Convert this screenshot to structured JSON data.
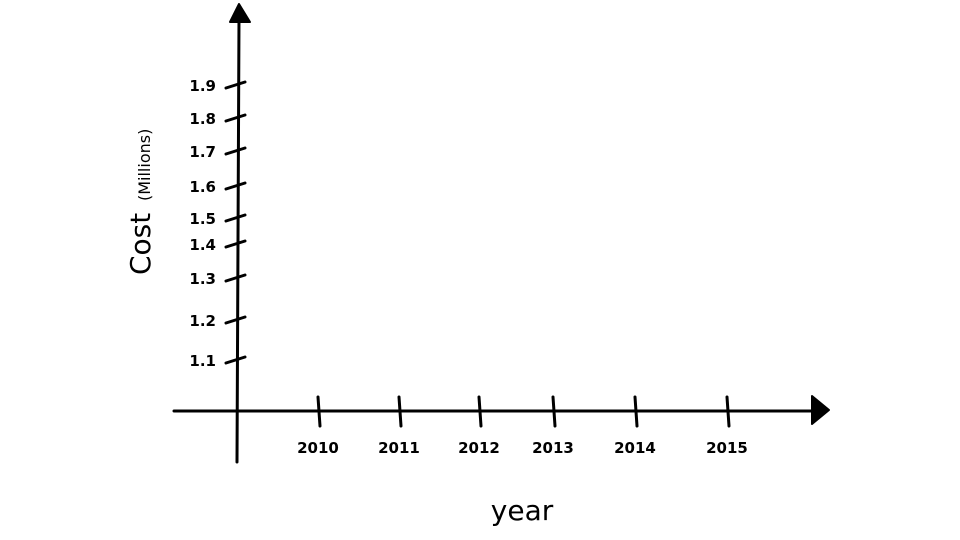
{
  "chart_data": {
    "type": "line",
    "title": "",
    "xlabel": "year",
    "ylabel": "Cost",
    "ylabel_unit": "(Millions)",
    "x_ticks": [
      "2010",
      "2011",
      "2012",
      "2013",
      "2014",
      "2015"
    ],
    "y_ticks": [
      "1.1",
      "1.2",
      "1.3",
      "1.4",
      "1.5",
      "1.6",
      "1.7",
      "1.8",
      "1.9"
    ],
    "series": [],
    "grid": false,
    "legend": "none",
    "colors": {
      "ink": "#000000",
      "background": "#ffffff"
    }
  }
}
